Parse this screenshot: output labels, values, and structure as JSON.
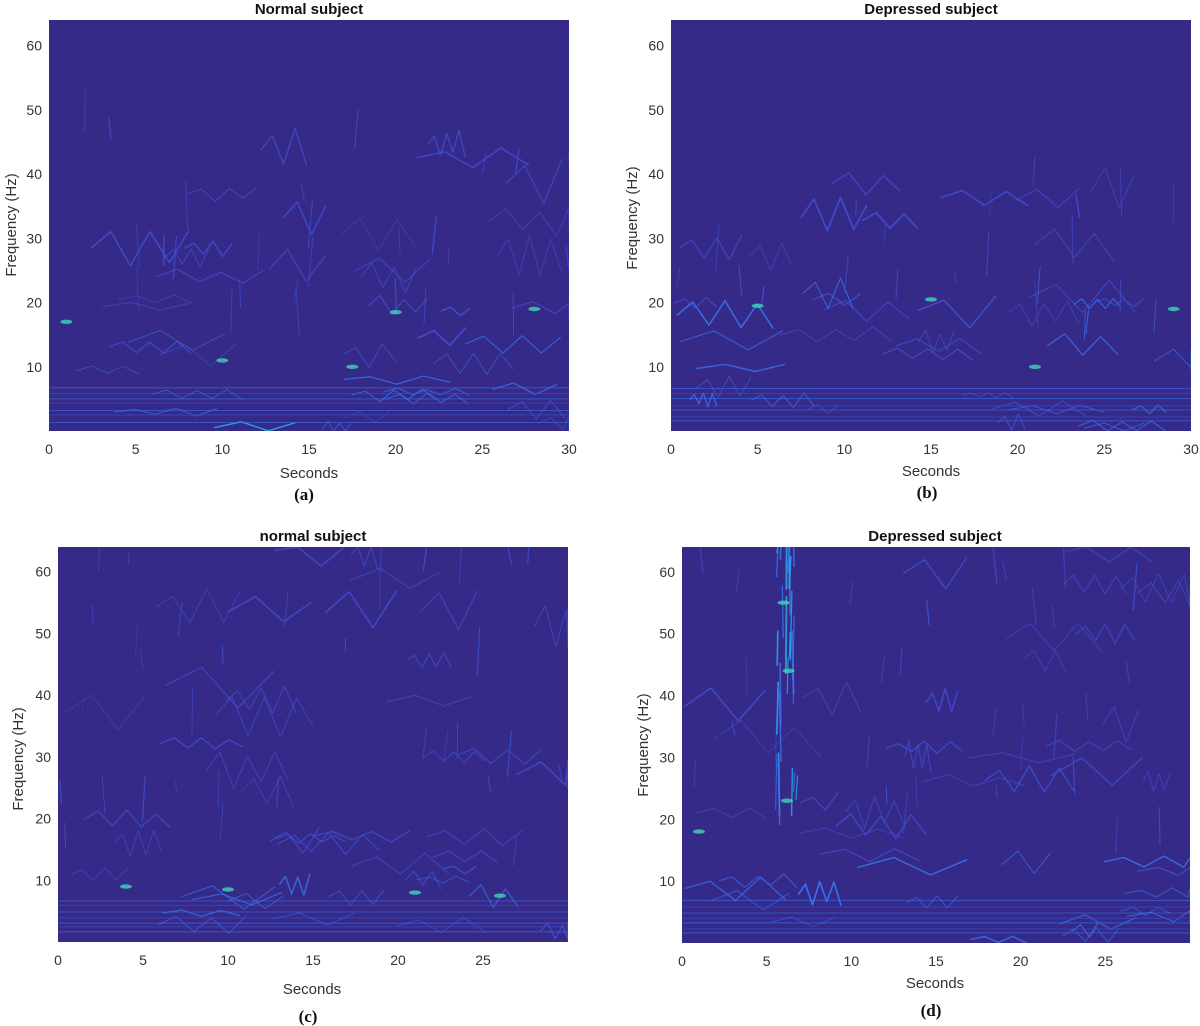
{
  "colors": {
    "background": "#352a87",
    "ridge_dim": "#3f4fd0",
    "ridge_mid": "#3b73f2",
    "ridge_bright": "#28b0e8",
    "ridge_peak": "#3fd6b8"
  },
  "chart_data": [
    {
      "type": "heatmap",
      "title": "Normal subject",
      "caption": "(a)",
      "xlabel": "Seconds",
      "ylabel": "Frequency (Hz)",
      "xlim": [
        0,
        30
      ],
      "ylim": [
        0,
        64
      ],
      "xticks": [
        0,
        5,
        10,
        15,
        20,
        25,
        30
      ],
      "yticks": [
        10,
        20,
        30,
        40,
        50,
        60
      ],
      "colormap": "parula",
      "energy_bands": [
        {
          "hz": [
            0,
            8
          ],
          "level": 0.55
        },
        {
          "hz": [
            8,
            14
          ],
          "level": 0.5
        },
        {
          "hz": [
            14,
            25
          ],
          "level": 0.32
        },
        {
          "hz": [
            25,
            48
          ],
          "level": 0.22
        },
        {
          "hz": [
            48,
            64
          ],
          "level": 0.0
        }
      ],
      "bright_spots": [
        {
          "x": 1,
          "y": 17
        },
        {
          "x": 10,
          "y": 11
        },
        {
          "x": 17.5,
          "y": 10
        },
        {
          "x": 20,
          "y": 18.5
        },
        {
          "x": 28,
          "y": 19
        }
      ]
    },
    {
      "type": "heatmap",
      "title": "Depressed subject",
      "caption": "(b)",
      "xlabel": "Seconds",
      "ylabel": "Frequency (Hz)",
      "xlim": [
        0,
        30
      ],
      "ylim": [
        0,
        64
      ],
      "xticks": [
        0,
        5,
        10,
        15,
        20,
        25,
        30
      ],
      "yticks": [
        10,
        20,
        30,
        40,
        50,
        60
      ],
      "colormap": "parula",
      "energy_bands": [
        {
          "hz": [
            0,
            8
          ],
          "level": 0.55
        },
        {
          "hz": [
            8,
            14
          ],
          "level": 0.48
        },
        {
          "hz": [
            14,
            23
          ],
          "level": 0.45
        },
        {
          "hz": [
            23,
            40
          ],
          "level": 0.2
        },
        {
          "hz": [
            40,
            64
          ],
          "level": 0.0
        }
      ],
      "bright_spots": [
        {
          "x": 5,
          "y": 19.5
        },
        {
          "x": 15,
          "y": 20.5
        },
        {
          "x": 21,
          "y": 10
        },
        {
          "x": 29,
          "y": 19
        }
      ]
    },
    {
      "type": "heatmap",
      "title": "normal subject",
      "caption": "(c)",
      "xlabel": "Seconds",
      "ylabel": "Frequency (Hz)",
      "xlim": [
        0,
        30
      ],
      "ylim": [
        0,
        64
      ],
      "xticks": [
        0,
        5,
        10,
        15,
        20,
        25
      ],
      "yticks": [
        10,
        20,
        30,
        40,
        50,
        60
      ],
      "colormap": "parula",
      "energy_bands": [
        {
          "hz": [
            0,
            8
          ],
          "level": 0.5
        },
        {
          "hz": [
            8,
            12
          ],
          "level": 0.5
        },
        {
          "hz": [
            12,
            30
          ],
          "level": 0.28
        },
        {
          "hz": [
            30,
            64
          ],
          "level": 0.18
        }
      ],
      "bright_spots": [
        {
          "x": 4,
          "y": 9
        },
        {
          "x": 10,
          "y": 8.5
        },
        {
          "x": 21,
          "y": 8
        },
        {
          "x": 26,
          "y": 7.5
        }
      ]
    },
    {
      "type": "heatmap",
      "title": "Depressed subject",
      "caption": "(d)",
      "xlabel": "Seconds",
      "ylabel": "Frequency (Hz)",
      "xlim": [
        0,
        30
      ],
      "ylim": [
        0,
        64
      ],
      "xticks": [
        0,
        5,
        10,
        15,
        20,
        25
      ],
      "yticks": [
        10,
        20,
        30,
        40,
        50,
        60
      ],
      "colormap": "parula",
      "energy_bands": [
        {
          "hz": [
            0,
            8
          ],
          "level": 0.5
        },
        {
          "hz": [
            8,
            14
          ],
          "level": 0.45
        },
        {
          "hz": [
            14,
            30
          ],
          "level": 0.26
        },
        {
          "hz": [
            30,
            64
          ],
          "level": 0.18
        }
      ],
      "bright_spots": [
        {
          "x": 6,
          "y": 55
        },
        {
          "x": 6.3,
          "y": 44
        },
        {
          "x": 6.2,
          "y": 23
        },
        {
          "x": 1,
          "y": 18
        }
      ],
      "burst": {
        "x": [
          5.5,
          6.8
        ],
        "hz": [
          18,
          64
        ]
      }
    }
  ]
}
